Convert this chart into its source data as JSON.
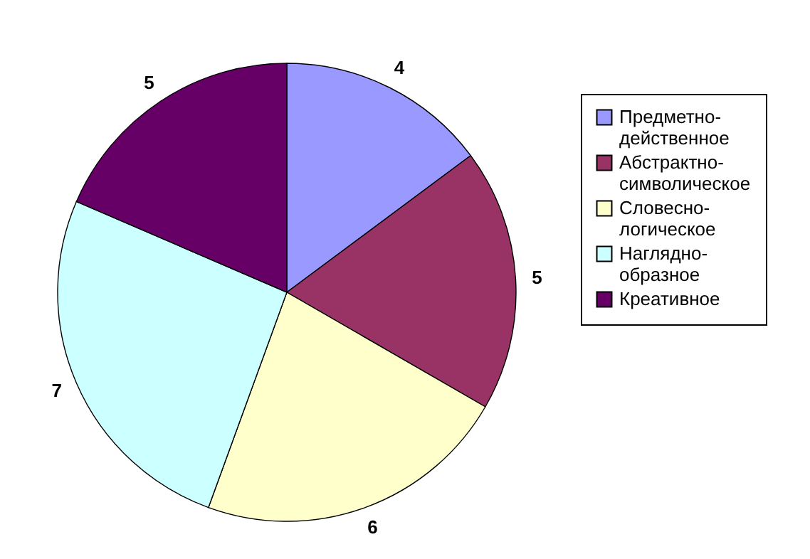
{
  "chart_data": {
    "type": "pie",
    "categories": [
      "Предметно-действенное",
      "Абстрактно-символическое",
      "Словесно-логическое",
      "Наглядно-образное",
      "Креативное"
    ],
    "values": [
      4,
      5,
      6,
      7,
      5
    ],
    "colors": [
      "#9999ff",
      "#993366",
      "#ffffcc",
      "#ccffff",
      "#660066"
    ],
    "data_labels": true,
    "legend": "right"
  }
}
